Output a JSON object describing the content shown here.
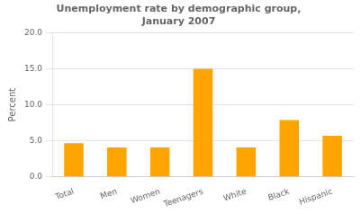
{
  "chart_data": {
    "type": "bar",
    "title": "Unemployment rate by demographic group,\nJanuary 2007",
    "ylabel": "Percent",
    "categories": [
      "Total",
      "Men",
      "Women",
      "Teenagers",
      "White",
      "Black",
      "Hispanic"
    ],
    "values": [
      4.7,
      4.1,
      4.1,
      15.0,
      4.1,
      7.9,
      5.7
    ],
    "color": "#FFA500",
    "ylim": [
      0,
      20.0
    ],
    "yticks": [
      {
        "value": 0.0,
        "label": "0.0"
      },
      {
        "value": 5.0,
        "label": "5.0"
      },
      {
        "value": 10.0,
        "label": "10.0"
      },
      {
        "value": 15.0,
        "label": "15.0"
      },
      {
        "value": 20.0,
        "label": "20.0"
      }
    ],
    "grid": true
  }
}
